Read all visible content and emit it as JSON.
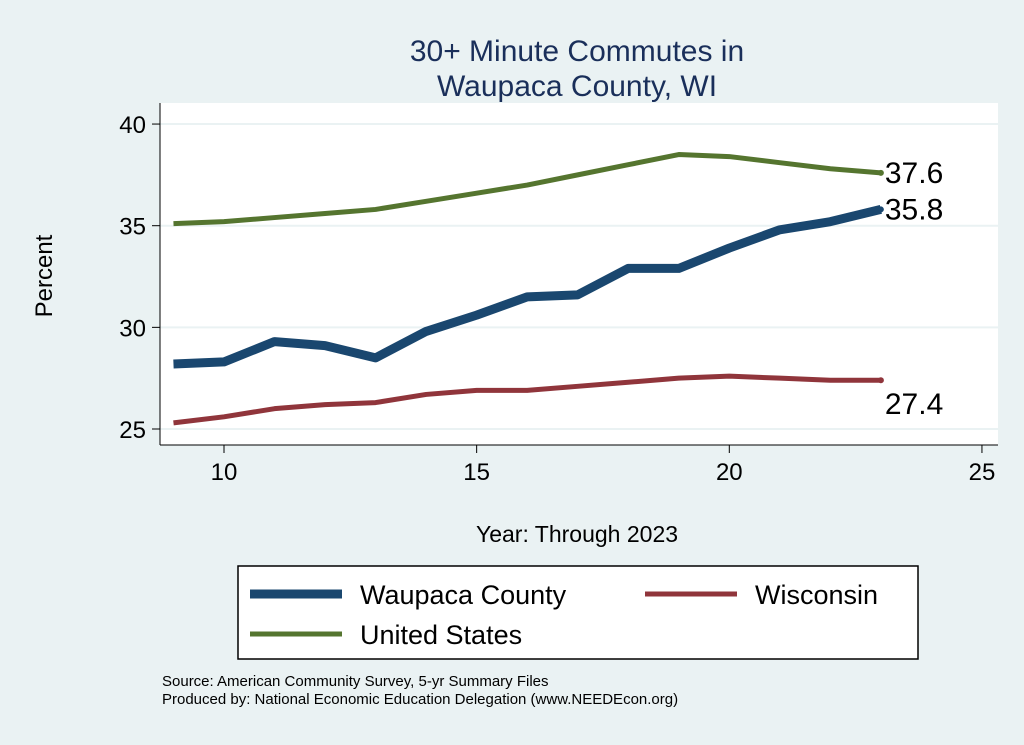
{
  "chart_data": {
    "type": "line",
    "title": [
      "30+ Minute Commutes in",
      "Waupaca County, WI"
    ],
    "xlabel": "Year: Through 2023",
    "ylabel": "Percent",
    "xlim": [
      8.7,
      25.3
    ],
    "ylim": [
      24.5,
      40.5
    ],
    "xticks": [
      10,
      15,
      20,
      25
    ],
    "yticks": [
      25,
      30,
      35,
      40
    ],
    "grid": true,
    "legend_position": "bottom",
    "x": [
      9,
      10,
      11,
      12,
      13,
      14,
      15,
      16,
      17,
      18,
      19,
      20,
      21,
      22,
      23
    ],
    "series": [
      {
        "name": "Waupaca County",
        "color": "#1a476f",
        "end_label": "35.8",
        "values": [
          28.2,
          28.3,
          29.3,
          29.1,
          28.5,
          29.8,
          30.6,
          31.5,
          31.6,
          32.9,
          32.9,
          33.9,
          34.8,
          35.2,
          35.8
        ]
      },
      {
        "name": "Wisconsin",
        "color": "#90353b",
        "end_label": "27.4",
        "values": [
          25.3,
          25.6,
          26.0,
          26.2,
          26.3,
          26.7,
          26.9,
          26.9,
          27.1,
          27.3,
          27.5,
          27.6,
          27.5,
          27.4,
          27.4
        ]
      },
      {
        "name": "United States",
        "color": "#55752f",
        "end_label": "37.6",
        "values": [
          35.1,
          35.2,
          35.4,
          35.6,
          35.8,
          36.2,
          36.6,
          37.0,
          37.5,
          38.0,
          38.5,
          38.4,
          38.1,
          37.8,
          37.6
        ]
      }
    ]
  },
  "footer": {
    "source": "Source: American Community Survey, 5-yr Summary Files",
    "produced": "Produced by: National Economic Education Delegation (www.NEEDEcon.org)"
  }
}
